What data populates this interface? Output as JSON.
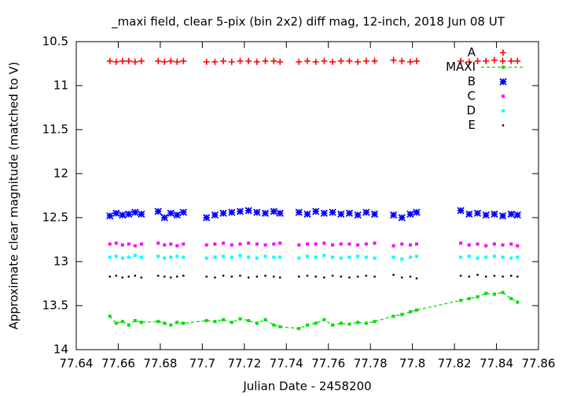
{
  "chart_data": {
    "type": "scatter",
    "title": "_maxi field, clear 5-pix (bin 2x2) diff mag, 12-inch, 2018 Jun 08 UT",
    "x_label": "Julian Date - 2458200",
    "y_label": "Approximate clear magnitude (matched to V)",
    "xlim": [
      77.64,
      77.86
    ],
    "xticks": [
      77.64,
      77.66,
      77.68,
      77.7,
      77.72,
      77.74,
      77.76,
      77.78,
      77.8,
      77.82,
      77.84,
      77.86
    ],
    "ylim": [
      10.5,
      14
    ],
    "yticks": [
      10.5,
      11,
      11.5,
      12,
      12.5,
      13,
      13.5,
      14
    ],
    "y_inverted": true,
    "legend": "top-right",
    "x": [
      77.656,
      77.659,
      77.662,
      77.665,
      77.668,
      77.671,
      77.679,
      77.682,
      77.685,
      77.688,
      77.691,
      77.702,
      77.706,
      77.71,
      77.714,
      77.718,
      77.722,
      77.726,
      77.73,
      77.734,
      77.737,
      77.746,
      77.75,
      77.754,
      77.758,
      77.762,
      77.766,
      77.77,
      77.774,
      77.778,
      77.782,
      77.791,
      77.795,
      77.799,
      77.802,
      77.823,
      77.827,
      77.831,
      77.835,
      77.839,
      77.843,
      77.847,
      77.85
    ],
    "series": [
      {
        "name": "A",
        "color": "#ff0000",
        "marker": "plus",
        "values": [
          10.72,
          10.73,
          10.72,
          10.72,
          10.73,
          10.72,
          10.72,
          10.73,
          10.72,
          10.73,
          10.72,
          10.73,
          10.73,
          10.72,
          10.73,
          10.72,
          10.72,
          10.73,
          10.72,
          10.72,
          10.73,
          10.73,
          10.72,
          10.73,
          10.72,
          10.73,
          10.72,
          10.72,
          10.73,
          10.72,
          10.72,
          10.71,
          10.72,
          10.73,
          10.72,
          10.72,
          10.73,
          10.72,
          10.72,
          10.71,
          10.72,
          10.72,
          10.72
        ]
      },
      {
        "name": "MAXI",
        "color": "#00dd00",
        "marker": "line-square",
        "values": [
          13.62,
          13.7,
          13.68,
          13.72,
          13.67,
          13.69,
          13.68,
          13.7,
          13.72,
          13.69,
          13.7,
          13.67,
          13.68,
          13.66,
          13.69,
          13.65,
          13.67,
          13.7,
          13.66,
          13.72,
          13.74,
          13.76,
          13.72,
          13.7,
          13.66,
          13.72,
          13.7,
          13.71,
          13.69,
          13.7,
          13.68,
          13.62,
          13.6,
          13.57,
          13.55,
          13.44,
          13.42,
          13.4,
          13.36,
          13.37,
          13.35,
          13.42,
          13.46
        ]
      },
      {
        "name": "B",
        "color": "#0000ff",
        "marker": "cross",
        "values": [
          12.48,
          12.45,
          12.47,
          12.46,
          12.44,
          12.46,
          12.43,
          12.5,
          12.45,
          12.47,
          12.44,
          12.5,
          12.47,
          12.45,
          12.44,
          12.43,
          12.42,
          12.44,
          12.45,
          12.43,
          12.45,
          12.44,
          12.46,
          12.43,
          12.45,
          12.44,
          12.46,
          12.45,
          12.47,
          12.44,
          12.46,
          12.47,
          12.5,
          12.46,
          12.44,
          12.42,
          12.46,
          12.45,
          12.47,
          12.46,
          12.48,
          12.46,
          12.47
        ]
      },
      {
        "name": "C",
        "color": "#ff00ff",
        "marker": "square",
        "values": [
          12.8,
          12.79,
          12.81,
          12.8,
          12.82,
          12.8,
          12.79,
          12.81,
          12.8,
          12.82,
          12.8,
          12.81,
          12.8,
          12.79,
          12.81,
          12.8,
          12.79,
          12.8,
          12.81,
          12.8,
          12.79,
          12.81,
          12.8,
          12.8,
          12.79,
          12.81,
          12.8,
          12.8,
          12.81,
          12.8,
          12.79,
          12.82,
          12.8,
          12.81,
          12.8,
          12.79,
          12.81,
          12.8,
          12.82,
          12.8,
          12.81,
          12.8,
          12.82
        ]
      },
      {
        "name": "D",
        "color": "#00ffff",
        "marker": "square",
        "values": [
          12.95,
          12.94,
          12.96,
          12.95,
          12.93,
          12.95,
          12.94,
          12.96,
          12.95,
          12.94,
          12.95,
          12.96,
          12.95,
          12.94,
          12.95,
          12.93,
          12.95,
          12.96,
          12.94,
          12.95,
          12.95,
          12.96,
          12.94,
          12.95,
          12.93,
          12.95,
          12.96,
          12.95,
          12.94,
          12.95,
          12.96,
          12.95,
          12.97,
          12.95,
          12.94,
          12.95,
          12.94,
          12.96,
          12.95,
          12.94,
          12.95,
          12.96,
          12.95
        ]
      },
      {
        "name": "E",
        "color": "#000000",
        "marker": "dot",
        "values": [
          13.17,
          13.16,
          13.18,
          13.17,
          13.16,
          13.18,
          13.16,
          13.17,
          13.18,
          13.17,
          13.16,
          13.17,
          13.18,
          13.16,
          13.17,
          13.16,
          13.18,
          13.17,
          13.16,
          13.17,
          13.18,
          13.17,
          13.16,
          13.17,
          13.18,
          13.16,
          13.17,
          13.18,
          13.17,
          13.16,
          13.17,
          13.15,
          13.18,
          13.17,
          13.19,
          13.16,
          13.17,
          13.15,
          13.17,
          13.16,
          13.17,
          13.16,
          13.17
        ]
      }
    ]
  }
}
